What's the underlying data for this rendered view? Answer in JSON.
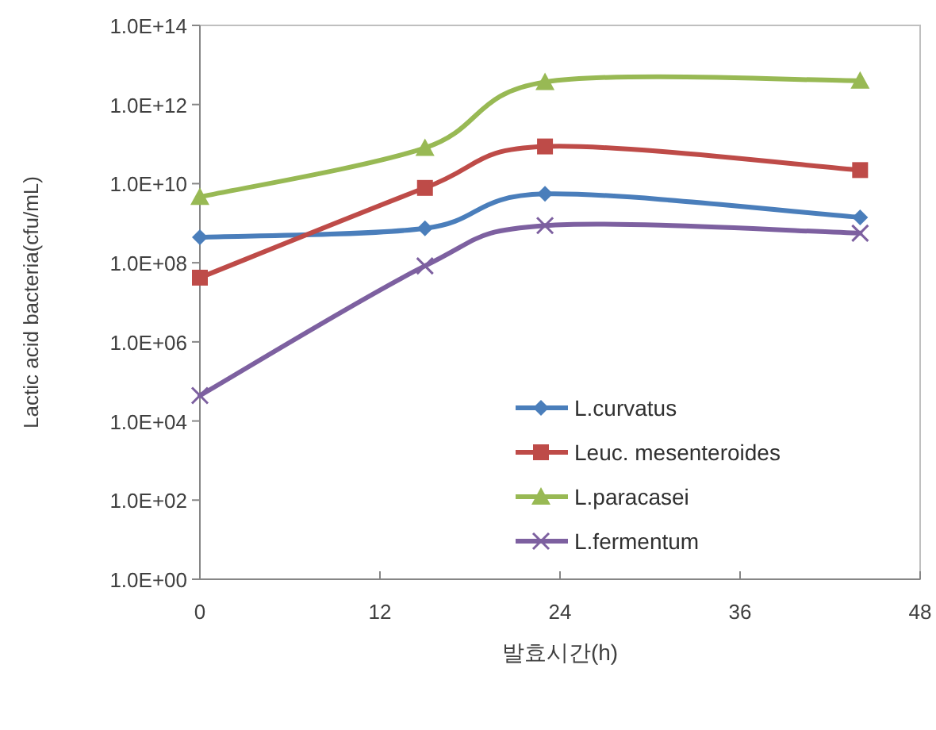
{
  "chart_data": {
    "type": "line",
    "xlabel": "발효시간(h)",
    "ylabel": "Lactic acid bacteria(cfu/mL)",
    "log": "y",
    "grid": false,
    "legend": "bottom right",
    "line_style": "solid",
    "xlim": [
      0,
      48
    ],
    "xticks": [
      0,
      12,
      24,
      36,
      48
    ],
    "ylim": [
      1,
      100000000000000.0
    ],
    "yticks": [
      {
        "value": 1,
        "label": "1.0E+00"
      },
      {
        "value": 100,
        "label": "1.0E+02"
      },
      {
        "value": 10000,
        "label": "1.0E+04"
      },
      {
        "value": 1000000,
        "label": "1.0E+06"
      },
      {
        "value": 100000000,
        "label": "1.0E+08"
      },
      {
        "value": 10000000000,
        "label": "1.0E+10"
      },
      {
        "value": 1000000000000,
        "label": "1.0E+12"
      },
      {
        "value": 100000000000000,
        "label": "1.0E+14"
      }
    ],
    "x": [
      0,
      15,
      23,
      44
    ],
    "series": [
      {
        "name": "L.curvatus",
        "color": "#4a7ebb",
        "marker": "diamond",
        "values": [
          440000000.0,
          740000000.0,
          5500000000.0,
          1400000000.0
        ]
      },
      {
        "name": "Leuc. mesenteroides",
        "color": "#be4b48",
        "marker": "square",
        "values": [
          42000000.0,
          7800000000.0,
          87000000000.0,
          22000000000.0
        ]
      },
      {
        "name": "L.paracasei",
        "color": "#98b954",
        "marker": "triangle",
        "values": [
          4600000000.0,
          80000000000.0,
          3700000000000.0,
          4000000000000.0
        ]
      },
      {
        "name": "L.fermentum",
        "color": "#7d60a0",
        "marker": "cross",
        "values": [
          44000.0,
          83000000.0,
          870000000.0,
          560000000.0
        ]
      }
    ]
  }
}
